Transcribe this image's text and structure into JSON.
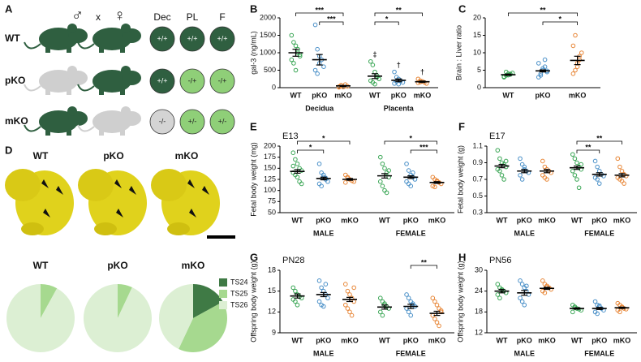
{
  "diagram": {
    "panel_a": "A",
    "male": "♂",
    "cross": "x",
    "female": "♀",
    "columns": [
      "Dec",
      "PL",
      "F"
    ],
    "rows": [
      {
        "label": "WT",
        "male_color": "#2f5f40",
        "female_color": "#2f5f40",
        "cells": [
          {
            "label": "+/+",
            "color": "#2f5f40"
          },
          {
            "label": "+/+",
            "color": "#2f5f40"
          },
          {
            "label": "+/+",
            "color": "#2f5f40"
          }
        ]
      },
      {
        "label": "pKO",
        "male_color": "#cfcfcf",
        "female_color": "#2f5f40",
        "cells": [
          {
            "label": "+/+",
            "color": "#2f5f40"
          },
          {
            "label": "-/+",
            "color": "#8fcf78"
          },
          {
            "label": "-/+",
            "color": "#8fcf78"
          }
        ]
      },
      {
        "label": "mKO",
        "male_color": "#2f5f40",
        "female_color": "#cfcfcf",
        "cells": [
          {
            "label": "-/-",
            "color": "#d4d4d4"
          },
          {
            "label": "+/-",
            "color": "#8fcf78"
          },
          {
            "label": "+/-",
            "color": "#8fcf78"
          }
        ]
      }
    ],
    "panel_d": "D",
    "photo_labels": [
      "WT",
      "pKO",
      "mKO"
    ]
  },
  "chart_data": [
    {
      "type": "dotplot",
      "panel": "B",
      "ylabel": "gal-3 (ng/mL)",
      "ylim": [
        0,
        2000
      ],
      "yticks": [
        0,
        500,
        1000,
        1500,
        2000
      ],
      "groups": [
        "Decidua",
        "Placenta"
      ],
      "series": [
        {
          "name": "WT",
          "color": "#3aa655",
          "values": [
            1000,
            330
          ],
          "errors": [
            100,
            70
          ],
          "points": [
            [
              1500,
              1300,
              1200,
              1000,
              900,
              800,
              700,
              500,
              1100,
              950
            ],
            [
              750,
              650,
              450,
              300,
              250,
              200,
              150,
              100,
              350
            ]
          ]
        },
        {
          "name": "pKO",
          "color": "#4a90c8",
          "values": [
            800,
            210
          ],
          "errors": [
            150,
            40
          ],
          "points": [
            [
              1800,
              1100,
              900,
              800,
              600,
              500,
              400,
              700
            ],
            [
              450,
              300,
              250,
              200,
              150,
              120,
              180,
              100
            ]
          ]
        },
        {
          "name": "mKO",
          "color": "#e8883a",
          "values": [
            50,
            170
          ],
          "errors": [
            15,
            20
          ],
          "points": [
            [
              30,
              60,
              20,
              90,
              40,
              10,
              70
            ],
            [
              250,
              200,
              180,
              150,
              120,
              140,
              160
            ]
          ]
        }
      ],
      "significance": [
        {
          "label": "***",
          "group": 0,
          "from": 0,
          "to": 2
        },
        {
          "label": "***",
          "group": 0,
          "from": 1,
          "to": 2
        },
        {
          "label": "**",
          "group": 1,
          "from": 0,
          "to": 2
        },
        {
          "label": "*",
          "group": 1,
          "from": 0,
          "to": 1
        }
      ],
      "markers": [
        {
          "label": "‡",
          "group": 1,
          "series": 0
        },
        {
          "label": "†",
          "group": 1,
          "series": 1
        },
        {
          "label": "†",
          "group": 1,
          "series": 2
        }
      ]
    },
    {
      "type": "dotplot",
      "panel": "C",
      "ylabel": "Brain : Liver ratio",
      "ylim": [
        0,
        20
      ],
      "yticks": [
        0,
        5,
        10,
        15,
        20
      ],
      "series": [
        {
          "name": "WT",
          "color": "#3aa655",
          "values": [
            3.7
          ],
          "errors": [
            0.2
          ],
          "points": [
            [
              3,
              3.5,
              4,
              3.8,
              4.2,
              3.2,
              4.5,
              3.6,
              3.9
            ]
          ]
        },
        {
          "name": "pKO",
          "color": "#4a90c8",
          "values": [
            4.8
          ],
          "errors": [
            0.3
          ],
          "points": [
            [
              3,
              4,
              5,
              6,
              4.5,
              7,
              3.5,
              5.5,
              8,
              4.8
            ]
          ]
        },
        {
          "name": "mKO",
          "color": "#e8883a",
          "values": [
            7.8
          ],
          "errors": [
            1.2
          ],
          "points": [
            [
              4,
              5,
              7,
              8,
              10,
              12,
              15,
              6,
              9
            ]
          ]
        }
      ],
      "significance": [
        {
          "label": "**",
          "group": 0,
          "from": 0,
          "to": 2
        },
        {
          "label": "*",
          "group": 0,
          "from": 1,
          "to": 2
        }
      ]
    },
    {
      "type": "dotplot",
      "panel": "E",
      "title": "E13",
      "ylabel": "Fetal body weight (mg)",
      "ylim": [
        50,
        200
      ],
      "yticks": [
        50,
        75,
        100,
        125,
        150,
        175,
        200
      ],
      "groups": [
        "MALE",
        "FEMALE"
      ],
      "series": [
        {
          "name": "WT",
          "color": "#3aa655",
          "values": [
            143,
            133
          ],
          "errors": [
            4,
            5
          ],
          "points": [
            [
              185,
              170,
              160,
              150,
              145,
              140,
              135,
              130,
              120,
              115,
              155
            ],
            [
              175,
              160,
              150,
              140,
              130,
              120,
              110,
              100,
              95,
              145
            ]
          ]
        },
        {
          "name": "pKO",
          "color": "#4a90c8",
          "values": [
            127,
            130
          ],
          "errors": [
            3,
            3
          ],
          "points": [
            [
              160,
              140,
              130,
              125,
              120,
              115,
              110,
              135,
              128
            ],
            [
              160,
              145,
              135,
              130,
              125,
              120,
              115,
              110,
              140
            ]
          ]
        },
        {
          "name": "mKO",
          "color": "#e8883a",
          "values": [
            125,
            118
          ],
          "errors": [
            2,
            2
          ],
          "points": [
            [
              135,
              130,
              125,
              122,
              120,
              118,
              128
            ],
            [
              130,
              125,
              120,
              118,
              115,
              110,
              108,
              122
            ]
          ]
        }
      ],
      "significance": [
        {
          "label": "*",
          "group": 0,
          "from": 0,
          "to": 2
        },
        {
          "label": "*",
          "group": 0,
          "from": 0,
          "to": 1
        },
        {
          "label": "*",
          "group": 1,
          "from": 0,
          "to": 2
        },
        {
          "label": "***",
          "group": 1,
          "from": 1,
          "to": 2
        }
      ]
    },
    {
      "type": "dotplot",
      "panel": "F",
      "title": "E17",
      "ylabel": "Fetal body weight (g)",
      "ylim": [
        0.3,
        1.1
      ],
      "yticks": [
        0.3,
        0.5,
        0.7,
        0.9,
        1.1
      ],
      "groups": [
        "MALE",
        "FEMALE"
      ],
      "series": [
        {
          "name": "WT",
          "color": "#3aa655",
          "values": [
            0.86,
            0.84
          ],
          "errors": [
            0.02,
            0.02
          ],
          "points": [
            [
              1.05,
              0.95,
              0.9,
              0.88,
              0.85,
              0.82,
              0.8,
              0.75,
              0.7,
              0.92
            ],
            [
              1.0,
              0.95,
              0.9,
              0.85,
              0.82,
              0.8,
              0.75,
              0.7,
              0.6,
              0.88
            ]
          ]
        },
        {
          "name": "pKO",
          "color": "#4a90c8",
          "values": [
            0.8,
            0.76
          ],
          "errors": [
            0.02,
            0.02
          ],
          "points": [
            [
              0.95,
              0.88,
              0.82,
              0.8,
              0.78,
              0.75,
              0.7,
              0.85
            ],
            [
              0.92,
              0.85,
              0.8,
              0.76,
              0.74,
              0.72,
              0.7,
              0.65
            ]
          ]
        },
        {
          "name": "mKO",
          "color": "#e8883a",
          "values": [
            0.8,
            0.75
          ],
          "errors": [
            0.02,
            0.02
          ],
          "points": [
            [
              0.92,
              0.85,
              0.82,
              0.8,
              0.78,
              0.75,
              0.72,
              0.7
            ],
            [
              0.95,
              0.85,
              0.8,
              0.76,
              0.74,
              0.72,
              0.7,
              0.68,
              0.65
            ]
          ]
        }
      ],
      "significance": [
        {
          "label": "**",
          "group": 1,
          "from": 0,
          "to": 2
        },
        {
          "label": "**",
          "group": 1,
          "from": 0,
          "to": 1
        }
      ]
    },
    {
      "type": "dotplot",
      "panel": "G",
      "title": "PN28",
      "ylabel": "Offspring body weight (g)",
      "ylim": [
        9,
        18
      ],
      "yticks": [
        9,
        12,
        15,
        18
      ],
      "groups": [
        "MALE",
        "FEMALE"
      ],
      "series": [
        {
          "name": "WT",
          "color": "#3aa655",
          "values": [
            14.3,
            12.7
          ],
          "errors": [
            0.3,
            0.3
          ],
          "points": [
            [
              15.5,
              15,
              14.5,
              14.2,
              14,
              13.8,
              13.5,
              13
            ],
            [
              14,
              13.5,
              13,
              12.8,
              12.5,
              12,
              11.5,
              13.2
            ]
          ]
        },
        {
          "name": "pKO",
          "color": "#4a90c8",
          "values": [
            14.5,
            12.8
          ],
          "errors": [
            0.3,
            0.3
          ],
          "points": [
            [
              16.5,
              15.5,
              15,
              14.5,
              14,
              13.5,
              13,
              12.8,
              16
            ],
            [
              14.5,
              14,
              13.5,
              13,
              12.8,
              12.5,
              12,
              11.5,
              13.2
            ]
          ]
        },
        {
          "name": "mKO",
          "color": "#e8883a",
          "values": [
            13.8,
            11.8
          ],
          "errors": [
            0.3,
            0.3
          ],
          "points": [
            [
              16,
              15,
              14.5,
              14,
              13.5,
              13,
              12.5,
              12,
              11.5,
              15.5
            ],
            [
              14,
              13.5,
              13,
              12.5,
              12,
              11.5,
              11,
              10.5,
              10,
              12.2
            ]
          ]
        }
      ],
      "significance": [
        {
          "label": "**",
          "group": 1,
          "from": 1,
          "to": 2
        }
      ]
    },
    {
      "type": "dotplot",
      "panel": "H",
      "title": "PN56",
      "ylabel": "Offspring body weight (g)",
      "ylim": [
        12,
        30
      ],
      "yticks": [
        12,
        18,
        24,
        30
      ],
      "groups": [
        "MALE",
        "FEMALE"
      ],
      "series": [
        {
          "name": "WT",
          "color": "#3aa655",
          "values": [
            24,
            19
          ],
          "errors": [
            0.5,
            0.2
          ],
          "points": [
            [
              26,
              25,
              24.5,
              24,
              23.5,
              23,
              22,
              24.2
            ],
            [
              20,
              19.5,
              19,
              18.8,
              18.5,
              18,
              19.2
            ]
          ]
        },
        {
          "name": "pKO",
          "color": "#4a90c8",
          "values": [
            23.5,
            19
          ],
          "errors": [
            0.7,
            0.3
          ],
          "points": [
            [
              27,
              26,
              25,
              24,
              23,
              22,
              21,
              20,
              25.5
            ],
            [
              21,
              20,
              19.5,
              19,
              18.5,
              18,
              17.5,
              19.8
            ]
          ]
        },
        {
          "name": "mKO",
          "color": "#e8883a",
          "values": [
            24.8,
            19.2
          ],
          "errors": [
            0.3,
            0.2
          ],
          "points": [
            [
              27,
              26,
              25.5,
              25,
              24.5,
              24,
              23.5,
              25.2
            ],
            [
              20.5,
              20,
              19.5,
              19,
              18.8,
              18.5,
              18,
              19.3
            ]
          ]
        }
      ]
    },
    {
      "type": "pie",
      "title": "WT",
      "categories": [
        "TS24",
        "TS25",
        "TS26"
      ],
      "values": [
        0,
        8,
        92
      ],
      "colors": [
        "#3f7a45",
        "#a6d98f",
        "#dcefd3"
      ]
    },
    {
      "type": "pie",
      "title": "pKO",
      "categories": [
        "TS24",
        "TS25",
        "TS26"
      ],
      "values": [
        0,
        7,
        93
      ],
      "colors": [
        "#3f7a45",
        "#a6d98f",
        "#dcefd3"
      ]
    },
    {
      "type": "pie",
      "title": "mKO",
      "categories": [
        "TS24",
        "TS25",
        "TS26"
      ],
      "values": [
        17,
        40,
        43
      ],
      "colors": [
        "#3f7a45",
        "#a6d98f",
        "#dcefd3"
      ],
      "legend": "right"
    }
  ]
}
